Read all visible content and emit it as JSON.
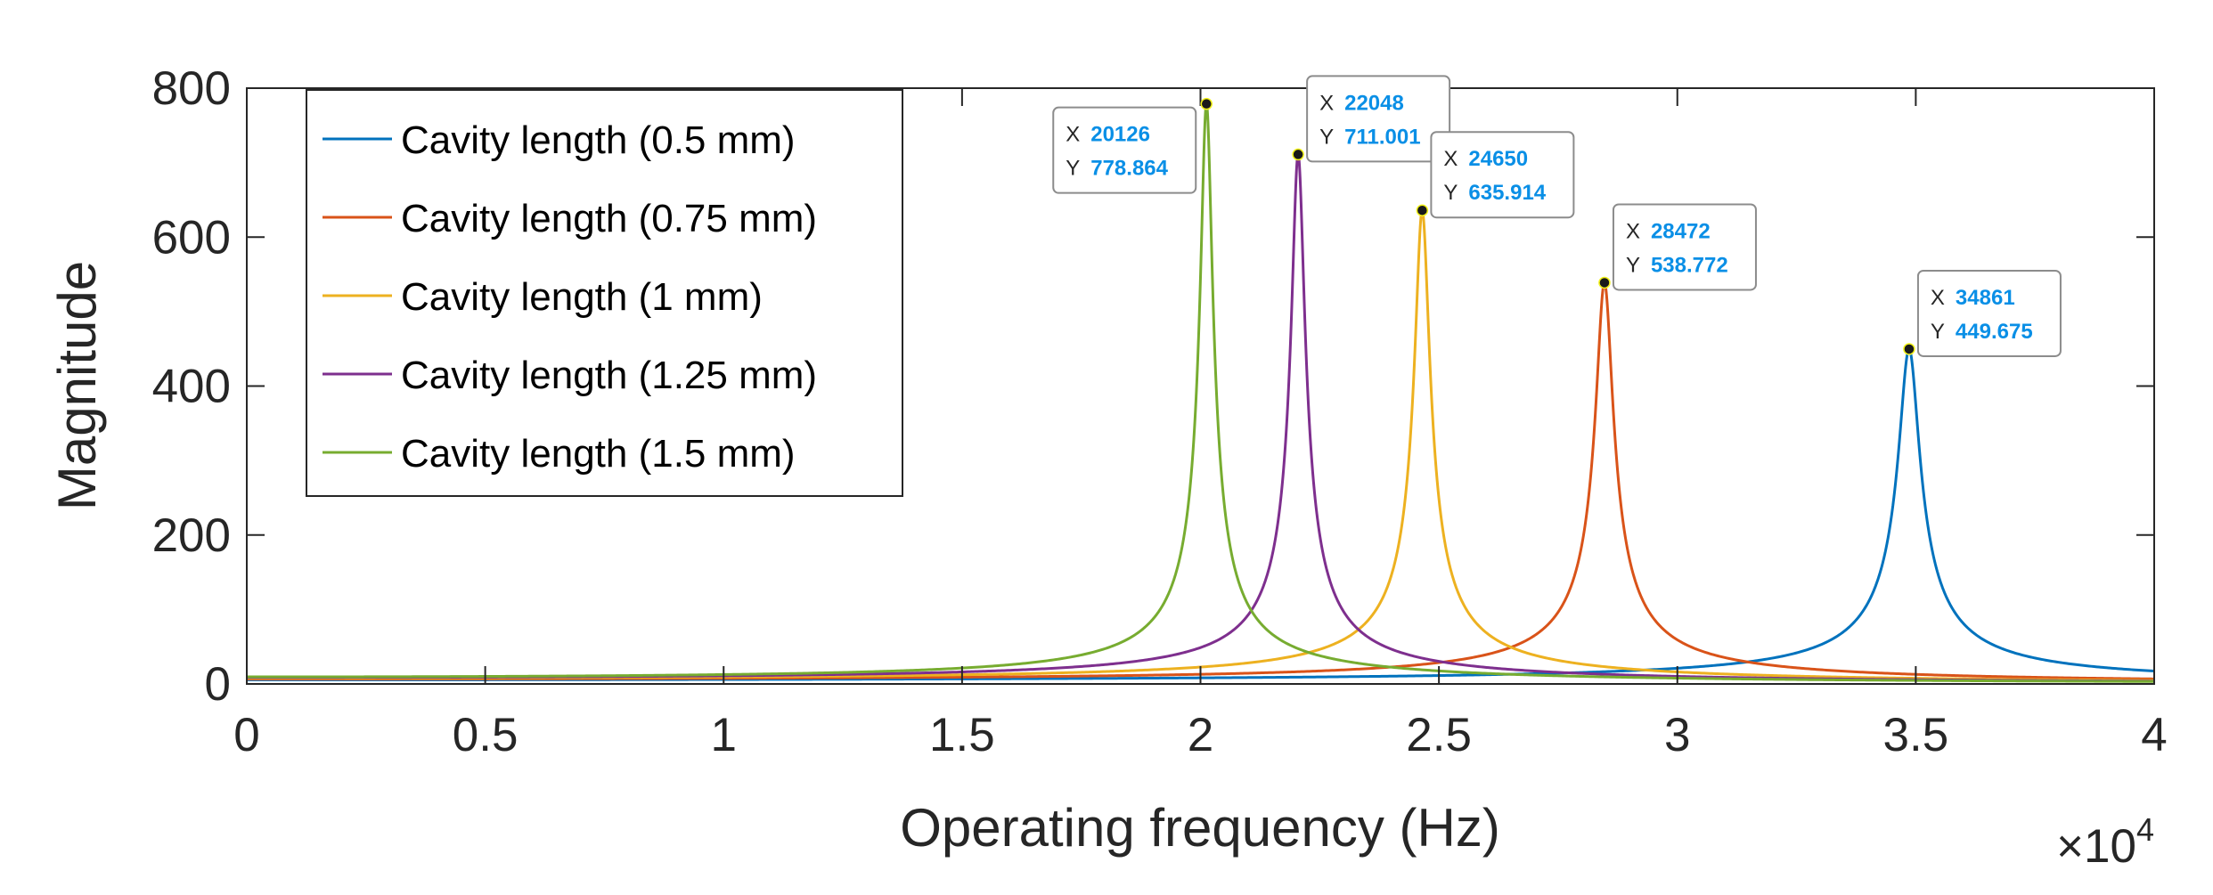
{
  "chart_data": {
    "type": "line",
    "title": "",
    "xlabel": "Operating frequency (Hz)",
    "ylabel": "Magnitude",
    "x_multiplier_label": "×10",
    "x_multiplier_exp": "4",
    "xlim": [
      0,
      40000
    ],
    "ylim": [
      0,
      800
    ],
    "xticks": [
      0,
      5000,
      10000,
      15000,
      20000,
      25000,
      30000,
      35000,
      40000
    ],
    "xtick_labels": [
      "0",
      "0.5",
      "1",
      "1.5",
      "2",
      "2.5",
      "3",
      "3.5",
      "4"
    ],
    "yticks": [
      0,
      200,
      400,
      600,
      800
    ],
    "ytick_labels": [
      "0",
      "200",
      "400",
      "600",
      "800"
    ],
    "grid": false,
    "legend_position": "top-left",
    "series": [
      {
        "name": "Cavity length (0.5 mm)",
        "color": "#0072BD",
        "peak_x": 34861,
        "peak_y": 449.675
      },
      {
        "name": "Cavity length (0.75 mm)",
        "color": "#D95319",
        "peak_x": 28472,
        "peak_y": 538.772
      },
      {
        "name": "Cavity length (1 mm)",
        "color": "#EDB120",
        "peak_x": 24650,
        "peak_y": 635.914
      },
      {
        "name": "Cavity length (1.25 mm)",
        "color": "#7E2F8E",
        "peak_x": 22048,
        "peak_y": 711.001
      },
      {
        "name": "Cavity length (1.5 mm)",
        "color": "#77AC30",
        "peak_x": 20126,
        "peak_y": 778.864
      }
    ],
    "datatips": [
      {
        "x_label": "X",
        "y_label": "Y",
        "x_value": "20126",
        "y_value": "778.864",
        "x": 20126,
        "y": 778.864,
        "side": "left"
      },
      {
        "x_label": "X",
        "y_label": "Y",
        "x_value": "22048",
        "y_value": "711.001",
        "x": 22048,
        "y": 711.001,
        "side": "right"
      },
      {
        "x_label": "X",
        "y_label": "Y",
        "x_value": "24650",
        "y_value": "635.914",
        "x": 24650,
        "y": 635.914,
        "side": "right"
      },
      {
        "x_label": "X",
        "y_label": "Y",
        "x_value": "28472",
        "y_value": "538.772",
        "x": 28472,
        "y": 538.772,
        "side": "right"
      },
      {
        "x_label": "X",
        "y_label": "Y",
        "x_value": "34861",
        "y_value": "449.675",
        "x": 34861,
        "y": 449.675,
        "side": "right"
      }
    ]
  }
}
